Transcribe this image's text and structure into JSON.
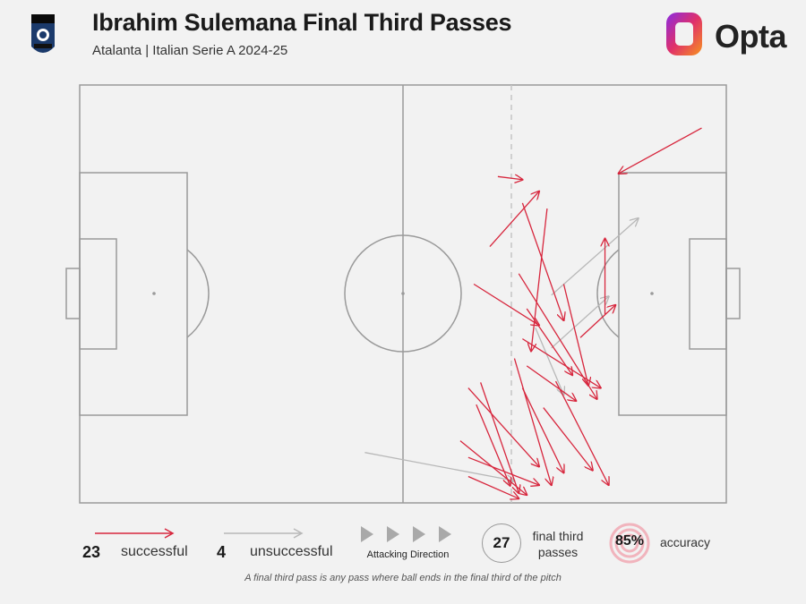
{
  "header": {
    "title": "Ibrahim Sulemana Final Third Passes",
    "subtitle": "Atalanta | Italian Serie A 2024-25",
    "logo_text": "Opta",
    "crest_text": "ATALANTA 1907"
  },
  "legend": {
    "successful_count": "23",
    "successful_label": "successful",
    "unsuccessful_count": "4",
    "unsuccessful_label": "unsuccessful",
    "direction_label": "Attacking Direction",
    "total_value": "27",
    "total_label_line1": "final third",
    "total_label_line2": "passes",
    "accuracy_value": "85%",
    "accuracy_label": "accuracy"
  },
  "footnote": "A final third pass is any pass where ball ends in the final third of the pitch",
  "colors": {
    "successful": "#d7263d",
    "unsuccessful": "#b8b8b8",
    "pitch_line": "#9a9a9a",
    "background": "#f2f2f2"
  },
  "chart_data": {
    "type": "scatter",
    "pitch": {
      "length": 105,
      "width": 68,
      "final_third_x": 70,
      "attacking_direction": "right"
    },
    "passes": [
      {
        "x1": 101.0,
        "y1": 61.0,
        "x2": 87.5,
        "y2": 53.6,
        "outcome": "successful"
      },
      {
        "x1": 67.9,
        "y1": 53.1,
        "x2": 71.9,
        "y2": 52.6,
        "outcome": "successful"
      },
      {
        "x1": 66.6,
        "y1": 41.7,
        "x2": 74.6,
        "y2": 50.7,
        "outcome": "successful"
      },
      {
        "x1": 71.9,
        "y1": 48.8,
        "x2": 78.6,
        "y2": 29.7,
        "outcome": "successful"
      },
      {
        "x1": 75.9,
        "y1": 47.9,
        "x2": 73.3,
        "y2": 24.7,
        "outcome": "successful"
      },
      {
        "x1": 64.0,
        "y1": 35.6,
        "x2": 74.6,
        "y2": 28.9,
        "outcome": "successful"
      },
      {
        "x1": 72.6,
        "y1": 31.6,
        "x2": 80.0,
        "y2": 20.8,
        "outcome": "successful"
      },
      {
        "x1": 71.3,
        "y1": 37.3,
        "x2": 84.0,
        "y2": 16.9,
        "outcome": "successful"
      },
      {
        "x1": 81.3,
        "y1": 26.9,
        "x2": 87.0,
        "y2": 32.2,
        "outcome": "successful"
      },
      {
        "x1": 85.3,
        "y1": 30.7,
        "x2": 85.3,
        "y2": 43.0,
        "outcome": "successful"
      },
      {
        "x1": 78.6,
        "y1": 35.6,
        "x2": 82.6,
        "y2": 19.1,
        "outcome": "successful"
      },
      {
        "x1": 71.9,
        "y1": 26.7,
        "x2": 84.6,
        "y2": 18.7,
        "outcome": "successful"
      },
      {
        "x1": 72.6,
        "y1": 22.3,
        "x2": 80.6,
        "y2": 16.6,
        "outcome": "successful"
      },
      {
        "x1": 71.9,
        "y1": 18.7,
        "x2": 78.6,
        "y2": 4.9,
        "outcome": "successful"
      },
      {
        "x1": 63.1,
        "y1": 18.7,
        "x2": 74.6,
        "y2": 5.9,
        "outcome": "successful"
      },
      {
        "x1": 64.4,
        "y1": 16.0,
        "x2": 69.9,
        "y2": 2.8,
        "outcome": "successful"
      },
      {
        "x1": 65.1,
        "y1": 19.6,
        "x2": 71.3,
        "y2": 1.6,
        "outcome": "successful"
      },
      {
        "x1": 70.6,
        "y1": 23.5,
        "x2": 76.6,
        "y2": 2.9,
        "outcome": "successful"
      },
      {
        "x1": 75.3,
        "y1": 15.5,
        "x2": 83.3,
        "y2": 5.3,
        "outcome": "successful"
      },
      {
        "x1": 77.3,
        "y1": 19.8,
        "x2": 85.9,
        "y2": 2.9,
        "outcome": "successful"
      },
      {
        "x1": 61.8,
        "y1": 10.1,
        "x2": 72.6,
        "y2": 1.3,
        "outcome": "successful"
      },
      {
        "x1": 63.1,
        "y1": 7.4,
        "x2": 74.6,
        "y2": 2.9,
        "outcome": "successful"
      },
      {
        "x1": 63.1,
        "y1": 4.3,
        "x2": 71.3,
        "y2": 0.7,
        "outcome": "successful"
      },
      {
        "x1": 76.6,
        "y1": 33.8,
        "x2": 90.7,
        "y2": 46.3,
        "outcome": "unsuccessful"
      },
      {
        "x1": 76.6,
        "y1": 25.2,
        "x2": 85.9,
        "y2": 33.6,
        "outcome": "unsuccessful"
      },
      {
        "x1": 74.0,
        "y1": 28.5,
        "x2": 78.6,
        "y2": 17.6,
        "outcome": "unsuccessful"
      },
      {
        "x1": 46.3,
        "y1": 8.2,
        "x2": 70.6,
        "y2": 3.6,
        "outcome": "unsuccessful"
      }
    ]
  }
}
